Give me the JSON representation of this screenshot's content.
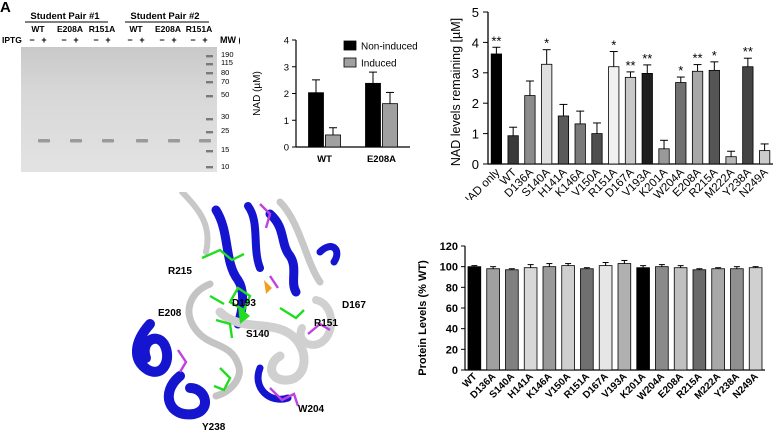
{
  "panels": {
    "a": "A",
    "gel": {
      "groups": [
        "Student Pair #1",
        "Student Pair #2"
      ],
      "lanes": [
        "WT",
        "E208A",
        "R151A",
        "WT",
        "E208A",
        "R151A"
      ],
      "iptg_label": "IPTG",
      "signs": [
        "−",
        "+",
        "−",
        "+",
        "−",
        "+",
        "−",
        "+",
        "−",
        "+",
        "−",
        "+"
      ],
      "mw_title": "MW (kD)",
      "mw": [
        "190",
        "115",
        "80",
        "70",
        "50",
        "30",
        "25",
        "15",
        "10"
      ]
    },
    "structure": {
      "labels": [
        "R215",
        "D193",
        "D167",
        "E208",
        "S140",
        "R151",
        "W204",
        "Y238"
      ]
    }
  },
  "chart_data": [
    {
      "type": "bar",
      "categories": [
        "WT",
        "E208A"
      ],
      "series": [
        {
          "name": "Non-induced",
          "values": [
            2.03,
            2.38
          ],
          "errors": [
            0.48,
            0.42
          ],
          "color": "#000000"
        },
        {
          "name": "Induced",
          "values": [
            0.45,
            1.62
          ],
          "errors": [
            0.27,
            0.42
          ],
          "color": "#a0a0a0"
        }
      ],
      "ylabel": "NAD (µM)",
      "ylim": [
        0,
        4
      ],
      "yticks": [
        "0",
        "1",
        "2",
        "3",
        "4"
      ],
      "legend_position": "top-right"
    },
    {
      "type": "bar",
      "categories": [
        "NAD only",
        "WT",
        "D136A",
        "S140A",
        "H141A",
        "K146A",
        "V150A",
        "R151A",
        "D167A",
        "V193A",
        "K201A",
        "W204A",
        "E208A",
        "R215A",
        "M222A",
        "Y238A",
        "N249A"
      ],
      "values": [
        3.62,
        0.93,
        2.25,
        3.28,
        1.58,
        1.32,
        1.0,
        3.2,
        2.85,
        2.98,
        0.5,
        2.68,
        3.05,
        3.08,
        0.24,
        3.2,
        0.44
      ],
      "errors": [
        0.22,
        0.28,
        0.48,
        0.48,
        0.38,
        0.42,
        0.35,
        0.5,
        0.18,
        0.28,
        0.28,
        0.18,
        0.22,
        0.28,
        0.18,
        0.28,
        0.22
      ],
      "significance": [
        "**",
        "",
        "",
        "*",
        "",
        "",
        "",
        "*",
        "**",
        "**",
        "",
        "*",
        "**",
        "*",
        "",
        "**",
        ""
      ],
      "colors": [
        "#000000",
        "#3a3a3a",
        "#8c8c8c",
        "#e0e0e0",
        "#5a5a5a",
        "#7a7a7a",
        "#4e4e4e",
        "#f0f0f0",
        "#c8c8c8",
        "#1e1e1e",
        "#9a9a9a",
        "#707070",
        "#a8a8a8",
        "#555555",
        "#b8b8b8",
        "#444444",
        "#cccccc"
      ],
      "ylabel": "NAD levels remaining [µM]",
      "ylim": [
        0,
        5
      ],
      "yticks": [
        "0",
        "1",
        "2",
        "3",
        "4",
        "5"
      ]
    },
    {
      "type": "bar",
      "categories": [
        "WT",
        "D136A",
        "S140A",
        "H141A",
        "K146A",
        "V150A",
        "R151A",
        "D167A",
        "V193A",
        "K201A",
        "W204A",
        "E208A",
        "R215A",
        "M222A",
        "Y238A",
        "N249A"
      ],
      "values": [
        100,
        98,
        97,
        99,
        100,
        101,
        98,
        101,
        103,
        99,
        100,
        99,
        97,
        98,
        98,
        99
      ],
      "errors": [
        1,
        2,
        1,
        3,
        3,
        2,
        1,
        3,
        3,
        2,
        2,
        2,
        1,
        1,
        2,
        1
      ],
      "colors": [
        "#000000",
        "#a0a0a0",
        "#808080",
        "#d8d8d8",
        "#999999",
        "#cfcfcf",
        "#707070",
        "#e6e6e6",
        "#b0b0b0",
        "#000000",
        "#8a8a8a",
        "#c0c0c0",
        "#6a6a6a",
        "#a8a8a8",
        "#909090",
        "#d0d0d0"
      ],
      "ylabel": "Protein Levels (% WT)",
      "ylim": [
        0,
        120
      ],
      "yticks": [
        "0",
        "20",
        "40",
        "60",
        "80",
        "100",
        "120"
      ]
    }
  ]
}
